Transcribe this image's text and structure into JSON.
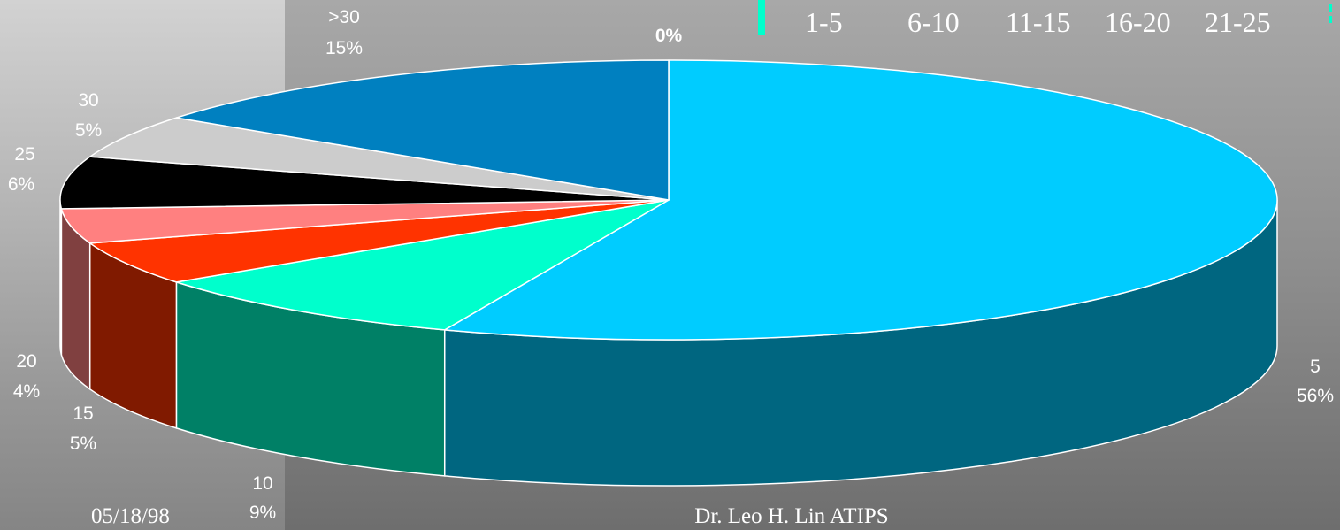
{
  "chart_data": {
    "type": "pie",
    "three_d": true,
    "slices": [
      {
        "label": "5",
        "percent": "56%",
        "value": 56,
        "top_color": "#00ccff",
        "side_color": "#006680"
      },
      {
        "label": "10",
        "percent": "9%",
        "value": 9,
        "top_color": "#00ffcc",
        "side_color": "#008066"
      },
      {
        "label": "15",
        "percent": "5%",
        "value": 5,
        "top_color": "#ff3300",
        "side_color": "#801a00"
      },
      {
        "label": "20",
        "percent": "4%",
        "value": 4,
        "top_color": "#ff8080",
        "side_color": "#804040"
      },
      {
        "label": "25",
        "percent": "6%",
        "value": 6,
        "top_color": "#000000",
        "side_color": "#000000"
      },
      {
        "label": "30",
        "percent": "5%",
        "value": 5,
        "top_color": "#cccccc",
        "side_color": "#666666"
      },
      {
        "label": ">30",
        "percent": "15%",
        "value": 15,
        "top_color": "#0080c0",
        "side_color": "#004060"
      },
      {
        "label": "",
        "percent": "0%",
        "value": 0,
        "top_color": "#00ccff",
        "side_color": "#006680"
      }
    ],
    "legend": {
      "placement": "top-right",
      "swatch_color": "#00ffcc",
      "entries": [
        "1-5",
        "6-10",
        "11-15",
        "16-20",
        "21-25"
      ]
    }
  },
  "footer": {
    "date": "05/18/98",
    "author": "Dr. Leo H. Lin ATIPS"
  }
}
